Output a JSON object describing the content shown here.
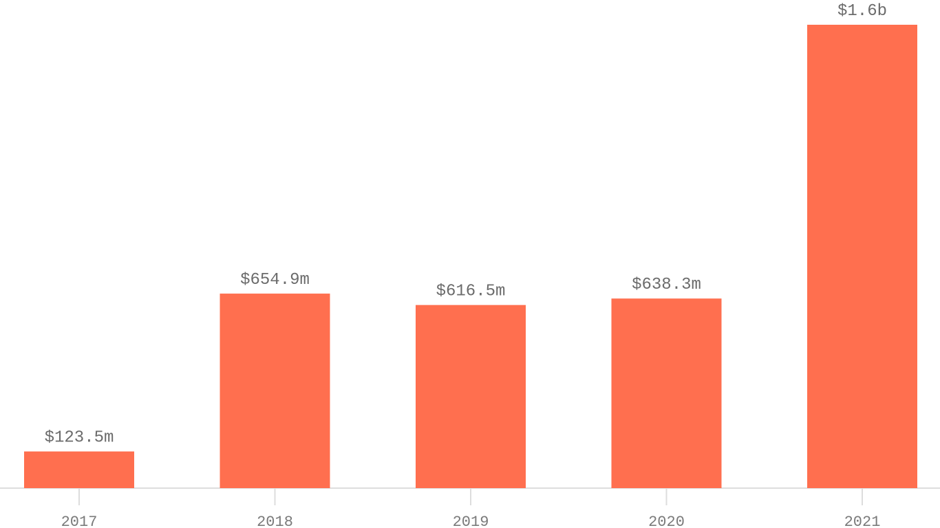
{
  "chart_data": {
    "type": "bar",
    "categories": [
      "2017",
      "2018",
      "2019",
      "2020",
      "2021"
    ],
    "values": [
      123.5,
      654.9,
      616.5,
      638.3,
      1560
    ],
    "value_labels": [
      "$123.5m",
      "$654.9m",
      "$616.5m",
      "$638.3m",
      "$1.6b"
    ],
    "color": "#ff6f4f"
  }
}
